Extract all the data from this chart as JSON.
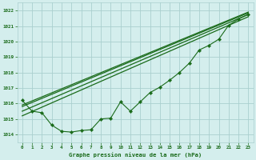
{
  "title": "Graphe pression niveau de la mer (hPa)",
  "bg_color": "#d4eeed",
  "grid_color": "#aacfcf",
  "line_color": "#1a6b1a",
  "xlim": [
    -0.5,
    23.5
  ],
  "ylim": [
    1013.5,
    1022.5
  ],
  "yticks": [
    1014,
    1015,
    1016,
    1017,
    1018,
    1019,
    1020,
    1021,
    1022
  ],
  "xticks": [
    0,
    1,
    2,
    3,
    4,
    5,
    6,
    7,
    8,
    9,
    10,
    11,
    12,
    13,
    14,
    15,
    16,
    17,
    18,
    19,
    20,
    21,
    22,
    23
  ],
  "zigzag": {
    "x": [
      0,
      1,
      2,
      3,
      4,
      5,
      6,
      7,
      8,
      9,
      10,
      11,
      12,
      13,
      14,
      15,
      16,
      17,
      18,
      19,
      20,
      21,
      22,
      23
    ],
    "y": [
      1016.2,
      1015.5,
      1015.4,
      1014.6,
      1014.2,
      1014.15,
      1014.25,
      1014.3,
      1015.0,
      1015.05,
      1016.1,
      1015.5,
      1016.1,
      1016.7,
      1017.05,
      1017.5,
      1018.0,
      1018.6,
      1019.45,
      1019.75,
      1020.15,
      1021.05,
      1021.45,
      1021.75
    ],
    "marker": "D",
    "markersize": 2.2,
    "linewidth": 0.8
  },
  "line1": {
    "x": [
      0,
      23
    ],
    "y": [
      1015.8,
      1021.85
    ],
    "linewidth": 0.9
  },
  "line2": {
    "x": [
      0,
      23
    ],
    "y": [
      1015.5,
      1021.75
    ],
    "linewidth": 0.9
  },
  "line3": {
    "x": [
      0,
      23
    ],
    "y": [
      1015.2,
      1021.6
    ],
    "linewidth": 0.9
  },
  "line4": {
    "x": [
      0,
      23
    ],
    "y": [
      1015.9,
      1021.9
    ],
    "linewidth": 0.9
  }
}
